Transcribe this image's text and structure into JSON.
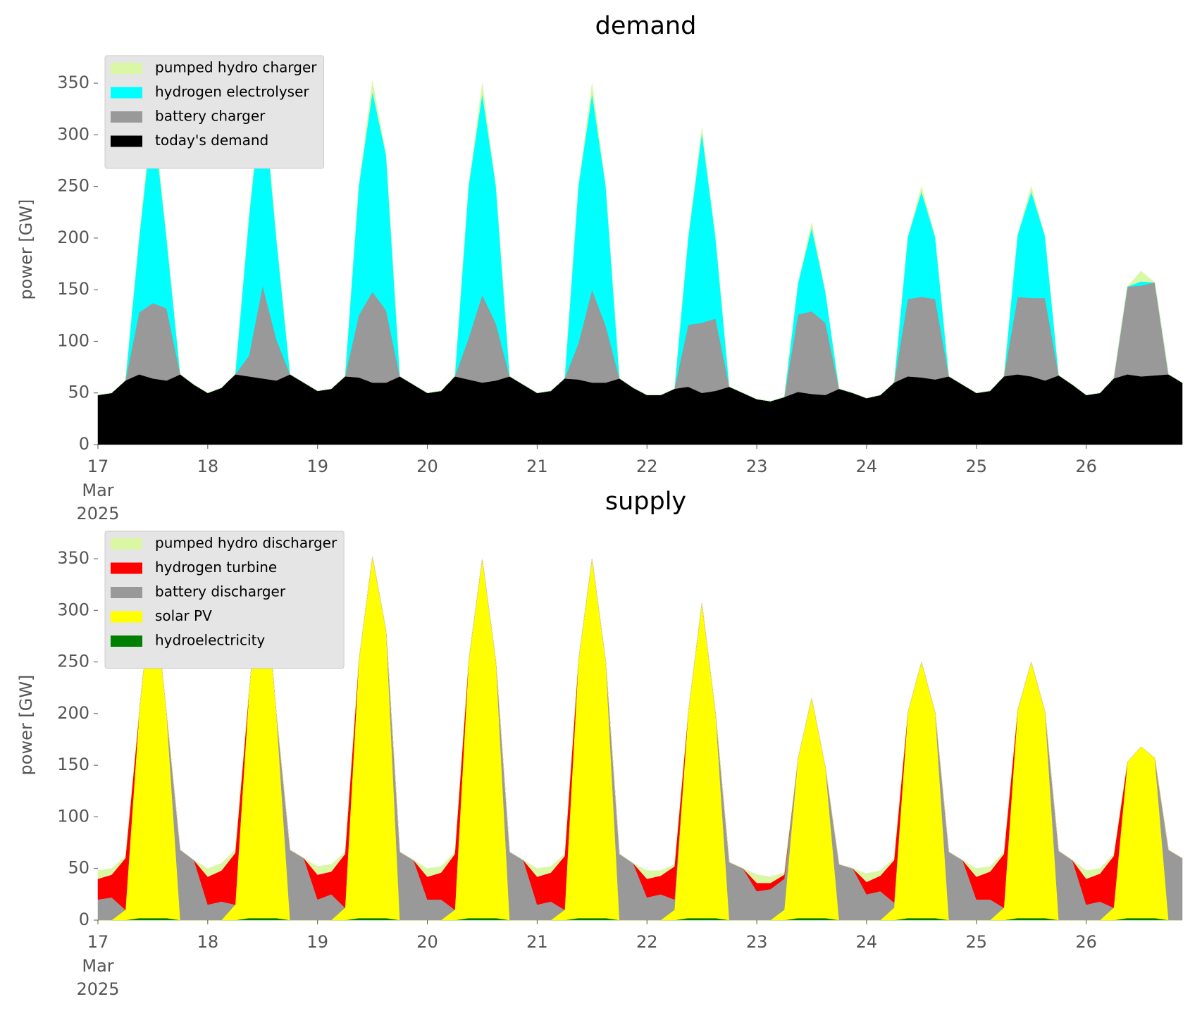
{
  "chart_data": [
    {
      "type": "stacked_area",
      "title": "demand",
      "ylabel": "power [GW]",
      "x": [
        17,
        17.125,
        17.25,
        17.375,
        17.5,
        17.625,
        17.75,
        17.875,
        18,
        18.125,
        18.25,
        18.375,
        18.5,
        18.625,
        18.75,
        18.875,
        19,
        19.125,
        19.25,
        19.375,
        19.5,
        19.625,
        19.75,
        19.875,
        20,
        20.125,
        20.25,
        20.375,
        20.5,
        20.625,
        20.75,
        20.875,
        21,
        21.125,
        21.25,
        21.375,
        21.5,
        21.625,
        21.75,
        21.875,
        22,
        22.125,
        22.25,
        22.375,
        22.5,
        22.625,
        22.75,
        22.875,
        23,
        23.125,
        23.25,
        23.375,
        23.5,
        23.625,
        23.75,
        23.875,
        24,
        24.125,
        24.25,
        24.375,
        24.5,
        24.625,
        24.75,
        24.875,
        25,
        25.125,
        25.25,
        25.375,
        25.5,
        25.625,
        25.75,
        25.875,
        26,
        26.125,
        26.25,
        26.375,
        26.5,
        26.625,
        26.75,
        26.875
      ],
      "xlim": [
        17,
        26.875
      ],
      "xticks": [
        17,
        18,
        19,
        20,
        21,
        22,
        23,
        24,
        25,
        26
      ],
      "xtick_date_lines": [
        "Mar",
        "2025"
      ],
      "ylim": [
        0,
        378
      ],
      "yticks": [
        0,
        50,
        100,
        150,
        200,
        250,
        300,
        350
      ],
      "legend": "upper left",
      "series": [
        {
          "name": "today's demand",
          "color": "#000000",
          "values": [
            48,
            50,
            62,
            68,
            64,
            62,
            68,
            58,
            50,
            55,
            68,
            66,
            64,
            62,
            68,
            60,
            52,
            54,
            66,
            65,
            60,
            60,
            66,
            58,
            50,
            52,
            66,
            63,
            60,
            62,
            66,
            58,
            50,
            52,
            64,
            63,
            60,
            60,
            64,
            55,
            48,
            48,
            54,
            56,
            50,
            52,
            56,
            50,
            44,
            42,
            46,
            51,
            49,
            48,
            54,
            50,
            45,
            48,
            60,
            66,
            65,
            63,
            66,
            58,
            50,
            52,
            66,
            68,
            66,
            62,
            67,
            58,
            48,
            50,
            64,
            68,
            66,
            67,
            68,
            60
          ]
        },
        {
          "name": "battery charger",
          "color": "#999999",
          "values": [
            0,
            0,
            0,
            60,
            73,
            70,
            0,
            0,
            0,
            0,
            0,
            20,
            90,
            40,
            0,
            0,
            0,
            0,
            0,
            60,
            88,
            70,
            0,
            0,
            0,
            0,
            0,
            40,
            85,
            55,
            0,
            0,
            0,
            0,
            0,
            35,
            90,
            55,
            0,
            0,
            0,
            0,
            0,
            60,
            68,
            70,
            0,
            0,
            0,
            0,
            0,
            75,
            80,
            70,
            0,
            0,
            0,
            0,
            0,
            75,
            78,
            78,
            0,
            0,
            0,
            0,
            0,
            75,
            76,
            80,
            0,
            0,
            0,
            0,
            0,
            85,
            88,
            90,
            0,
            0
          ]
        },
        {
          "name": "hydrogen electrolyser",
          "color": "#00ffff",
          "values": [
            0,
            0,
            0,
            72,
            183,
            68,
            0,
            0,
            0,
            0,
            0,
            134,
            191,
            98,
            0,
            0,
            0,
            0,
            0,
            125,
            194,
            150,
            0,
            0,
            0,
            0,
            0,
            147,
            195,
            133,
            0,
            0,
            0,
            0,
            0,
            152,
            190,
            135,
            0,
            0,
            0,
            0,
            0,
            84,
            184,
            78,
            0,
            0,
            0,
            0,
            0,
            30,
            81,
            30,
            0,
            0,
            0,
            0,
            0,
            60,
            102,
            60,
            0,
            0,
            0,
            0,
            0,
            60,
            103,
            60,
            0,
            0,
            0,
            0,
            0,
            0,
            4,
            0,
            0,
            0
          ]
        },
        {
          "name": "pumped hydro charger",
          "color": "#daf7a6",
          "values": [
            0,
            0,
            0,
            0,
            10,
            0,
            0,
            0,
            0,
            0,
            0,
            0,
            10,
            0,
            0,
            0,
            0,
            0,
            0,
            0,
            10,
            0,
            0,
            0,
            0,
            0,
            0,
            0,
            10,
            0,
            0,
            0,
            0,
            0,
            0,
            0,
            10,
            0,
            0,
            0,
            0,
            0,
            0,
            0,
            5,
            0,
            0,
            0,
            0,
            0,
            0,
            0,
            5,
            0,
            0,
            0,
            0,
            0,
            0,
            0,
            5,
            0,
            0,
            0,
            0,
            0,
            0,
            0,
            5,
            0,
            0,
            0,
            0,
            0,
            0,
            0,
            10,
            0,
            0,
            0
          ]
        }
      ]
    },
    {
      "type": "stacked_area",
      "title": "supply",
      "ylabel": "power [GW]",
      "x": [
        17,
        17.125,
        17.25,
        17.375,
        17.5,
        17.625,
        17.75,
        17.875,
        18,
        18.125,
        18.25,
        18.375,
        18.5,
        18.625,
        18.75,
        18.875,
        19,
        19.125,
        19.25,
        19.375,
        19.5,
        19.625,
        19.75,
        19.875,
        20,
        20.125,
        20.25,
        20.375,
        20.5,
        20.625,
        20.75,
        20.875,
        21,
        21.125,
        21.25,
        21.375,
        21.5,
        21.625,
        21.75,
        21.875,
        22,
        22.125,
        22.25,
        22.375,
        22.5,
        22.625,
        22.75,
        22.875,
        23,
        23.125,
        23.25,
        23.375,
        23.5,
        23.625,
        23.75,
        23.875,
        24,
        24.125,
        24.25,
        24.375,
        24.5,
        24.625,
        24.75,
        24.875,
        25,
        25.125,
        25.25,
        25.375,
        25.5,
        25.625,
        25.75,
        25.875,
        26,
        26.125,
        26.25,
        26.375,
        26.5,
        26.625,
        26.75,
        26.875
      ],
      "xlim": [
        17,
        26.875
      ],
      "xticks": [
        17,
        18,
        19,
        20,
        21,
        22,
        23,
        24,
        25,
        26
      ],
      "xtick_date_lines": [
        "Mar",
        "2025"
      ],
      "ylim": [
        0,
        378
      ],
      "yticks": [
        0,
        50,
        100,
        150,
        200,
        250,
        300,
        350
      ],
      "legend": "upper left",
      "series": [
        {
          "name": "hydroelectricity",
          "color": "#008000",
          "values": [
            0,
            0,
            0,
            2,
            2,
            2,
            0,
            0,
            0,
            0,
            0,
            2,
            2,
            2,
            0,
            0,
            0,
            0,
            0,
            2,
            2,
            2,
            0,
            0,
            0,
            0,
            0,
            2,
            2,
            2,
            0,
            0,
            0,
            0,
            0,
            2,
            2,
            2,
            0,
            0,
            0,
            0,
            0,
            2,
            2,
            2,
            0,
            0,
            0,
            0,
            0,
            2,
            2,
            2,
            0,
            0,
            0,
            0,
            0,
            2,
            2,
            2,
            0,
            0,
            0,
            0,
            0,
            2,
            2,
            2,
            0,
            0,
            0,
            0,
            0,
            2,
            2,
            2,
            0,
            0
          ]
        },
        {
          "name": "solar PV",
          "color": "#ffff00",
          "values": [
            0,
            0,
            10,
            198,
            328,
            198,
            0,
            0,
            0,
            0,
            15,
            218,
            353,
            198,
            0,
            0,
            0,
            0,
            12,
            248,
            350,
            278,
            0,
            0,
            0,
            0,
            10,
            248,
            348,
            248,
            0,
            0,
            0,
            0,
            10,
            248,
            348,
            248,
            0,
            0,
            0,
            0,
            10,
            198,
            305,
            198,
            0,
            0,
            0,
            0,
            10,
            154,
            213,
            146,
            0,
            0,
            0,
            0,
            12,
            199,
            248,
            199,
            0,
            0,
            0,
            0,
            12,
            201,
            248,
            200,
            0,
            0,
            0,
            0,
            12,
            151,
            166,
            155,
            0,
            0
          ]
        },
        {
          "name": "battery discharger",
          "color": "#999999",
          "values": [
            20,
            22,
            0,
            0,
            0,
            0,
            68,
            58,
            15,
            18,
            0,
            0,
            0,
            0,
            68,
            60,
            20,
            25,
            0,
            0,
            0,
            0,
            66,
            58,
            20,
            20,
            0,
            0,
            0,
            0,
            66,
            58,
            15,
            18,
            0,
            0,
            0,
            0,
            64,
            55,
            22,
            25,
            10,
            0,
            0,
            0,
            56,
            50,
            28,
            30,
            30,
            0,
            0,
            0,
            54,
            50,
            25,
            28,
            5,
            0,
            0,
            0,
            66,
            58,
            20,
            20,
            0,
            0,
            0,
            0,
            67,
            58,
            15,
            18,
            0,
            0,
            0,
            0,
            68,
            60
          ]
        },
        {
          "name": "hydrogen turbine",
          "color": "#ff0000",
          "values": [
            20,
            22,
            50,
            0,
            0,
            0,
            0,
            0,
            27,
            30,
            50,
            0,
            0,
            0,
            0,
            0,
            24,
            22,
            52,
            0,
            0,
            0,
            0,
            0,
            22,
            26,
            54,
            0,
            0,
            0,
            0,
            0,
            27,
            28,
            52,
            0,
            0,
            0,
            0,
            0,
            18,
            18,
            32,
            0,
            0,
            0,
            0,
            0,
            8,
            6,
            4,
            0,
            0,
            0,
            0,
            0,
            12,
            15,
            41,
            0,
            0,
            0,
            0,
            0,
            22,
            27,
            52,
            0,
            0,
            0,
            0,
            0,
            25,
            27,
            50,
            0,
            0,
            0,
            0,
            0
          ]
        },
        {
          "name": "pumped hydro discharger",
          "color": "#daf7a6",
          "values": [
            8,
            6,
            2,
            0,
            0,
            0,
            0,
            0,
            8,
            7,
            3,
            0,
            0,
            0,
            0,
            0,
            8,
            7,
            2,
            0,
            0,
            0,
            0,
            0,
            8,
            6,
            2,
            0,
            0,
            0,
            0,
            0,
            8,
            6,
            2,
            0,
            0,
            0,
            0,
            0,
            8,
            5,
            2,
            0,
            0,
            0,
            0,
            0,
            8,
            6,
            2,
            0,
            0,
            0,
            0,
            0,
            8,
            5,
            2,
            0,
            0,
            0,
            0,
            0,
            8,
            5,
            2,
            0,
            0,
            0,
            0,
            0,
            8,
            5,
            2,
            0,
            0,
            0,
            0,
            0
          ]
        }
      ]
    }
  ]
}
